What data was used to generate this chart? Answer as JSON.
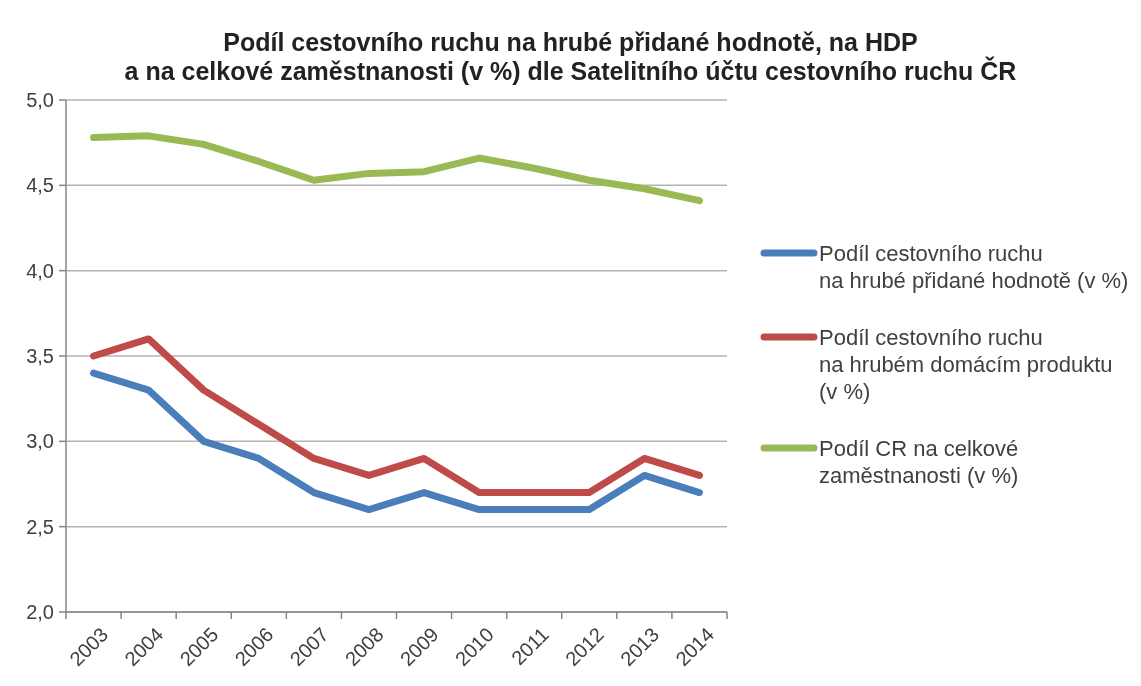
{
  "chart_data": {
    "type": "line",
    "title": "Podíl cestovního ruchu na hrubé přidané hodnotě, na HDP\na na celkové zaměstnanosti (v %) dle Satelitního účtu cestovního ruchu ČR",
    "categories": [
      "2003",
      "2004",
      "2005",
      "2006",
      "2007",
      "2008",
      "2009",
      "2010",
      "2011",
      "2012",
      "2013",
      "2014"
    ],
    "series": [
      {
        "name": "Podíl cestovního ruchu\nna hrubé přidané hodnotě (v %)",
        "color": "#4a7ebb",
        "values": [
          3.4,
          3.3,
          3.0,
          2.9,
          2.7,
          2.6,
          2.7,
          2.6,
          2.6,
          2.6,
          2.8,
          2.7
        ]
      },
      {
        "name": "Podíl cestovního ruchu\nna hrubém domácím produktu\n(v %)",
        "color": "#be4b48",
        "values": [
          3.5,
          3.6,
          3.3,
          3.1,
          2.9,
          2.8,
          2.9,
          2.7,
          2.7,
          2.7,
          2.9,
          2.8
        ]
      },
      {
        "name": "Podíl CR na celkové\nzaměstnanosti (v %)",
        "color": "#98b954",
        "values": [
          4.78,
          4.79,
          4.74,
          4.64,
          4.53,
          4.57,
          4.58,
          4.66,
          4.6,
          4.53,
          4.48,
          4.41
        ]
      }
    ],
    "ylim": [
      2,
      5
    ],
    "yticks": [
      {
        "value": 2,
        "label": "2,0"
      },
      {
        "value": 2.5,
        "label": "2,5"
      },
      {
        "value": 3,
        "label": "3,0"
      },
      {
        "value": 3.5,
        "label": "3,5"
      },
      {
        "value": 4,
        "label": "4,0"
      },
      {
        "value": 4.5,
        "label": "4,5"
      },
      {
        "value": 5,
        "label": "5,0"
      }
    ],
    "grid": "y",
    "legend": "right"
  }
}
